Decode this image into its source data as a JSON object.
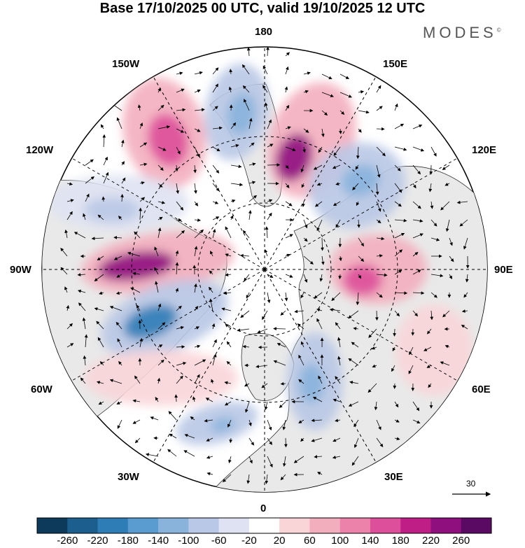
{
  "header": {
    "title": "Base 17/10/2025 00 UTC, valid 19/10/2025 12 UTC",
    "brand": "MODES",
    "brand_mark": "©"
  },
  "map": {
    "projection": "polar-stereographic-north",
    "longitude_labels": {
      "top": "180",
      "bottom": "0",
      "left": "90W",
      "right": "90E",
      "upper_left_1": "150W",
      "upper_left_2": "120W",
      "lower_left_1": "60W",
      "lower_left_2": "30W",
      "upper_right_1": "150E",
      "upper_right_2": "120E",
      "lower_right_1": "60E",
      "lower_right_2": "30E"
    },
    "reference_vector": "30",
    "colors": {
      "land_fill": "#e9e9e9",
      "grid_line": "#000000"
    },
    "anomaly_cells": [
      {
        "name": "pos-150w",
        "value": 140
      },
      {
        "name": "neg-165w",
        "value": -140
      },
      {
        "name": "pos-170e",
        "value": 220
      },
      {
        "name": "neg-135e",
        "value": -140
      },
      {
        "name": "pos-105e",
        "value": 140
      },
      {
        "name": "pos-90w",
        "value": 220
      },
      {
        "name": "neg-70w",
        "value": -220
      },
      {
        "name": "neg-110w",
        "value": -100
      },
      {
        "name": "neg-20e",
        "value": -140
      },
      {
        "name": "neg-35w",
        "value": -140
      },
      {
        "name": "pos-60w",
        "value": 60
      },
      {
        "name": "pos-50e",
        "value": 60
      }
    ]
  },
  "colorbar": {
    "ticks": [
      "-260",
      "-220",
      "-180",
      "-140",
      "-100",
      "-60",
      "-20",
      "20",
      "60",
      "100",
      "140",
      "180",
      "220",
      "260"
    ],
    "colors": [
      "#0d3a5a",
      "#1c5f8e",
      "#2f7db6",
      "#5a9ccf",
      "#89b3db",
      "#b9c8e6",
      "#dfe2f2",
      "#ffffff",
      "#fad5d8",
      "#f3aebe",
      "#ec82a9",
      "#dd4f9a",
      "#c01e87",
      "#8f0f7f",
      "#5b0a63"
    ]
  }
}
